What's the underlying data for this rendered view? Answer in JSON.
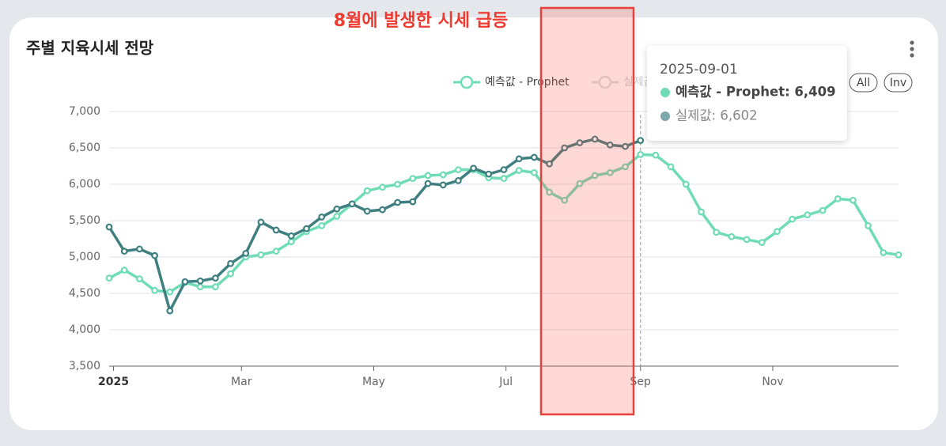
{
  "chart_data": {
    "type": "line",
    "title": "주별 지육시세 전망",
    "annotation": "8월에 발생한 시세 급등",
    "buttons": [
      "All",
      "Inv"
    ],
    "x": [
      "2024-12-30",
      "2025-01-06",
      "2025-01-13",
      "2025-01-20",
      "2025-01-27",
      "2025-02-03",
      "2025-02-10",
      "2025-02-17",
      "2025-02-24",
      "2025-03-03",
      "2025-03-10",
      "2025-03-17",
      "2025-03-24",
      "2025-03-31",
      "2025-04-07",
      "2025-04-14",
      "2025-04-21",
      "2025-04-28",
      "2025-05-05",
      "2025-05-12",
      "2025-05-19",
      "2025-05-26",
      "2025-06-02",
      "2025-06-09",
      "2025-06-16",
      "2025-06-23",
      "2025-06-30",
      "2025-07-07",
      "2025-07-14",
      "2025-07-21",
      "2025-07-28",
      "2025-08-04",
      "2025-08-11",
      "2025-08-18",
      "2025-08-25",
      "2025-09-01",
      "2025-09-08",
      "2025-09-15",
      "2025-09-22",
      "2025-09-29",
      "2025-10-06",
      "2025-10-13",
      "2025-10-20",
      "2025-10-27",
      "2025-11-03",
      "2025-11-10",
      "2025-11-17",
      "2025-11-24",
      "2025-12-01",
      "2025-12-08",
      "2025-12-15",
      "2025-12-22",
      "2025-12-29"
    ],
    "series": [
      {
        "name": "예측값 - Prophet",
        "color": "#6fdcb6",
        "values": [
          4710,
          4820,
          4700,
          4540,
          4520,
          4650,
          4590,
          4590,
          4770,
          5000,
          5030,
          5080,
          5210,
          5350,
          5430,
          5560,
          5730,
          5910,
          5960,
          6000,
          6080,
          6120,
          6130,
          6200,
          6200,
          6090,
          6080,
          6190,
          6160,
          5890,
          5780,
          6010,
          6120,
          6160,
          6240,
          6409,
          6400,
          6240,
          6000,
          5620,
          5340,
          5280,
          5240,
          5200,
          5350,
          5520,
          5580,
          5640,
          5800,
          5780,
          5430,
          5060,
          5030
        ]
      },
      {
        "name": "실제값",
        "color": "#3f7f80",
        "values": [
          5413,
          5080,
          5110,
          5020,
          4260,
          4660,
          4670,
          4710,
          4910,
          5050,
          5480,
          5370,
          5290,
          5390,
          5550,
          5660,
          5730,
          5630,
          5650,
          5750,
          5760,
          6010,
          5990,
          6050,
          6220,
          6140,
          6200,
          6350,
          6370,
          6280,
          6500,
          6570,
          6620,
          6540,
          6520,
          6602,
          null,
          null,
          null,
          null,
          null,
          null,
          null,
          null,
          null,
          null,
          null,
          null,
          null,
          null,
          null,
          null,
          null
        ]
      }
    ],
    "xlim": [
      "2024-12-30",
      "2025-12-29"
    ],
    "xticks": [
      {
        "value": "2025-01-01",
        "label": "2025"
      },
      {
        "value": "2025-03-01",
        "label": "Mar"
      },
      {
        "value": "2025-05-01",
        "label": "May"
      },
      {
        "value": "2025-07-01",
        "label": "Jul"
      },
      {
        "value": "2025-09-01",
        "label": "Sep"
      },
      {
        "value": "2025-11-01",
        "label": "Nov"
      }
    ],
    "ylim": [
      3500,
      7000
    ],
    "yticks": [
      {
        "value": 3500,
        "label": "3,500"
      },
      {
        "value": 4000,
        "label": "4,000"
      },
      {
        "value": 4500,
        "label": "4,500"
      },
      {
        "value": 5000,
        "label": "5,000"
      },
      {
        "value": 5500,
        "label": "5,500"
      },
      {
        "value": 6000,
        "label": "6,000"
      },
      {
        "value": 6500,
        "label": "6,500"
      },
      {
        "value": 7000,
        "label": "7,000"
      }
    ],
    "grid": true,
    "tooltip": {
      "title": "2025-09-01",
      "lines": [
        "예측값 - Prophet: 6,409",
        "실제값: 6,602"
      ]
    }
  }
}
